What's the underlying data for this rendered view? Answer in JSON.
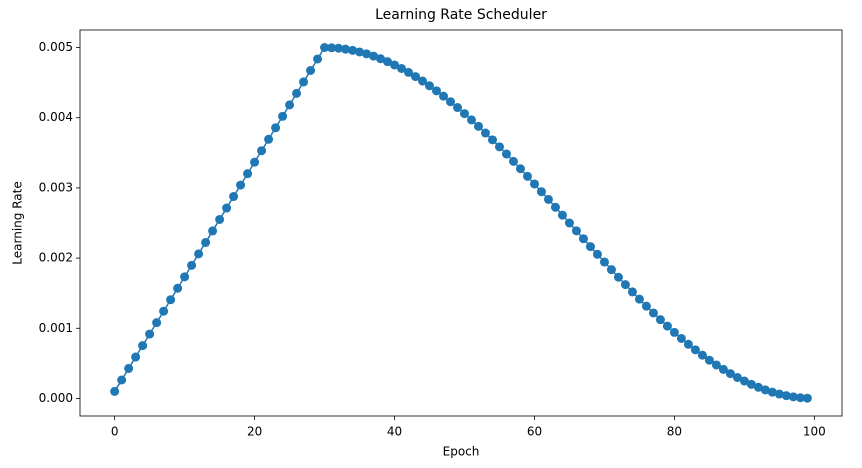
{
  "chart_data": {
    "type": "line",
    "title": "Learning Rate Scheduler",
    "x_label": "Epoch",
    "y_label": "Learning Rate",
    "x": [
      0,
      1,
      2,
      3,
      4,
      5,
      6,
      7,
      8,
      9,
      10,
      11,
      12,
      13,
      14,
      15,
      16,
      17,
      18,
      19,
      20,
      21,
      22,
      23,
      24,
      25,
      26,
      27,
      28,
      29,
      30,
      31,
      32,
      33,
      34,
      35,
      36,
      37,
      38,
      39,
      40,
      41,
      42,
      43,
      44,
      45,
      46,
      47,
      48,
      49,
      50,
      51,
      52,
      53,
      54,
      55,
      56,
      57,
      58,
      59,
      60,
      61,
      62,
      63,
      64,
      65,
      66,
      67,
      68,
      69,
      70,
      71,
      72,
      73,
      74,
      75,
      76,
      77,
      78,
      79,
      80,
      81,
      82,
      83,
      84,
      85,
      86,
      87,
      88,
      89,
      90,
      91,
      92,
      93,
      94,
      95,
      96,
      97,
      98,
      99
    ],
    "series": [
      {
        "name": "Learning Rate",
        "color": "#1f77b4",
        "markers": true,
        "values": [
          0.0001,
          0.000263,
          0.000427,
          0.00059,
          0.000753,
          0.000917,
          0.00108,
          0.001243,
          0.001407,
          0.00157,
          0.001733,
          0.001897,
          0.00206,
          0.002223,
          0.002387,
          0.00255,
          0.002713,
          0.002877,
          0.00304,
          0.003203,
          0.003367,
          0.00353,
          0.003693,
          0.003857,
          0.00402,
          0.004183,
          0.004347,
          0.00451,
          0.004673,
          0.004837,
          0.005,
          0.004997,
          0.00499,
          0.004977,
          0.00496,
          0.004937,
          0.00491,
          0.004878,
          0.004841,
          0.004799,
          0.004752,
          0.004702,
          0.004646,
          0.004586,
          0.004523,
          0.004455,
          0.004383,
          0.004307,
          0.004228,
          0.004145,
          0.004059,
          0.003969,
          0.003877,
          0.003782,
          0.003685,
          0.003585,
          0.003483,
          0.003378,
          0.003273,
          0.003165,
          0.003056,
          0.002946,
          0.002836,
          0.002724,
          0.002612,
          0.0025,
          0.002388,
          0.002276,
          0.002164,
          0.002054,
          0.001944,
          0.001835,
          0.001727,
          0.001622,
          0.001518,
          0.001415,
          0.001315,
          0.001218,
          0.001123,
          0.001031,
          0.000941,
          0.000855,
          0.000772,
          0.000693,
          0.000617,
          0.000545,
          0.000477,
          0.000414,
          0.000354,
          0.000299,
          0.000248,
          0.000201,
          0.000159,
          0.000122,
          9e-05,
          6.3e-05,
          4e-05,
          2.3e-05,
          1e-05,
          3e-06
        ]
      }
    ],
    "xlim": [
      -4.95,
      103.95
    ],
    "xticks": [
      0,
      20,
      40,
      60,
      80,
      100
    ],
    "ylim": [
      -0.00025,
      0.00525
    ],
    "yticks": [
      {
        "value": 0,
        "label": "0.000"
      },
      {
        "value": 0.001,
        "label": "0.001"
      },
      {
        "value": 0.002,
        "label": "0.002"
      },
      {
        "value": 0.003,
        "label": "0.003"
      },
      {
        "value": 0.004,
        "label": "0.004"
      },
      {
        "value": 0.005,
        "label": "0.005"
      }
    ],
    "grid": false
  }
}
